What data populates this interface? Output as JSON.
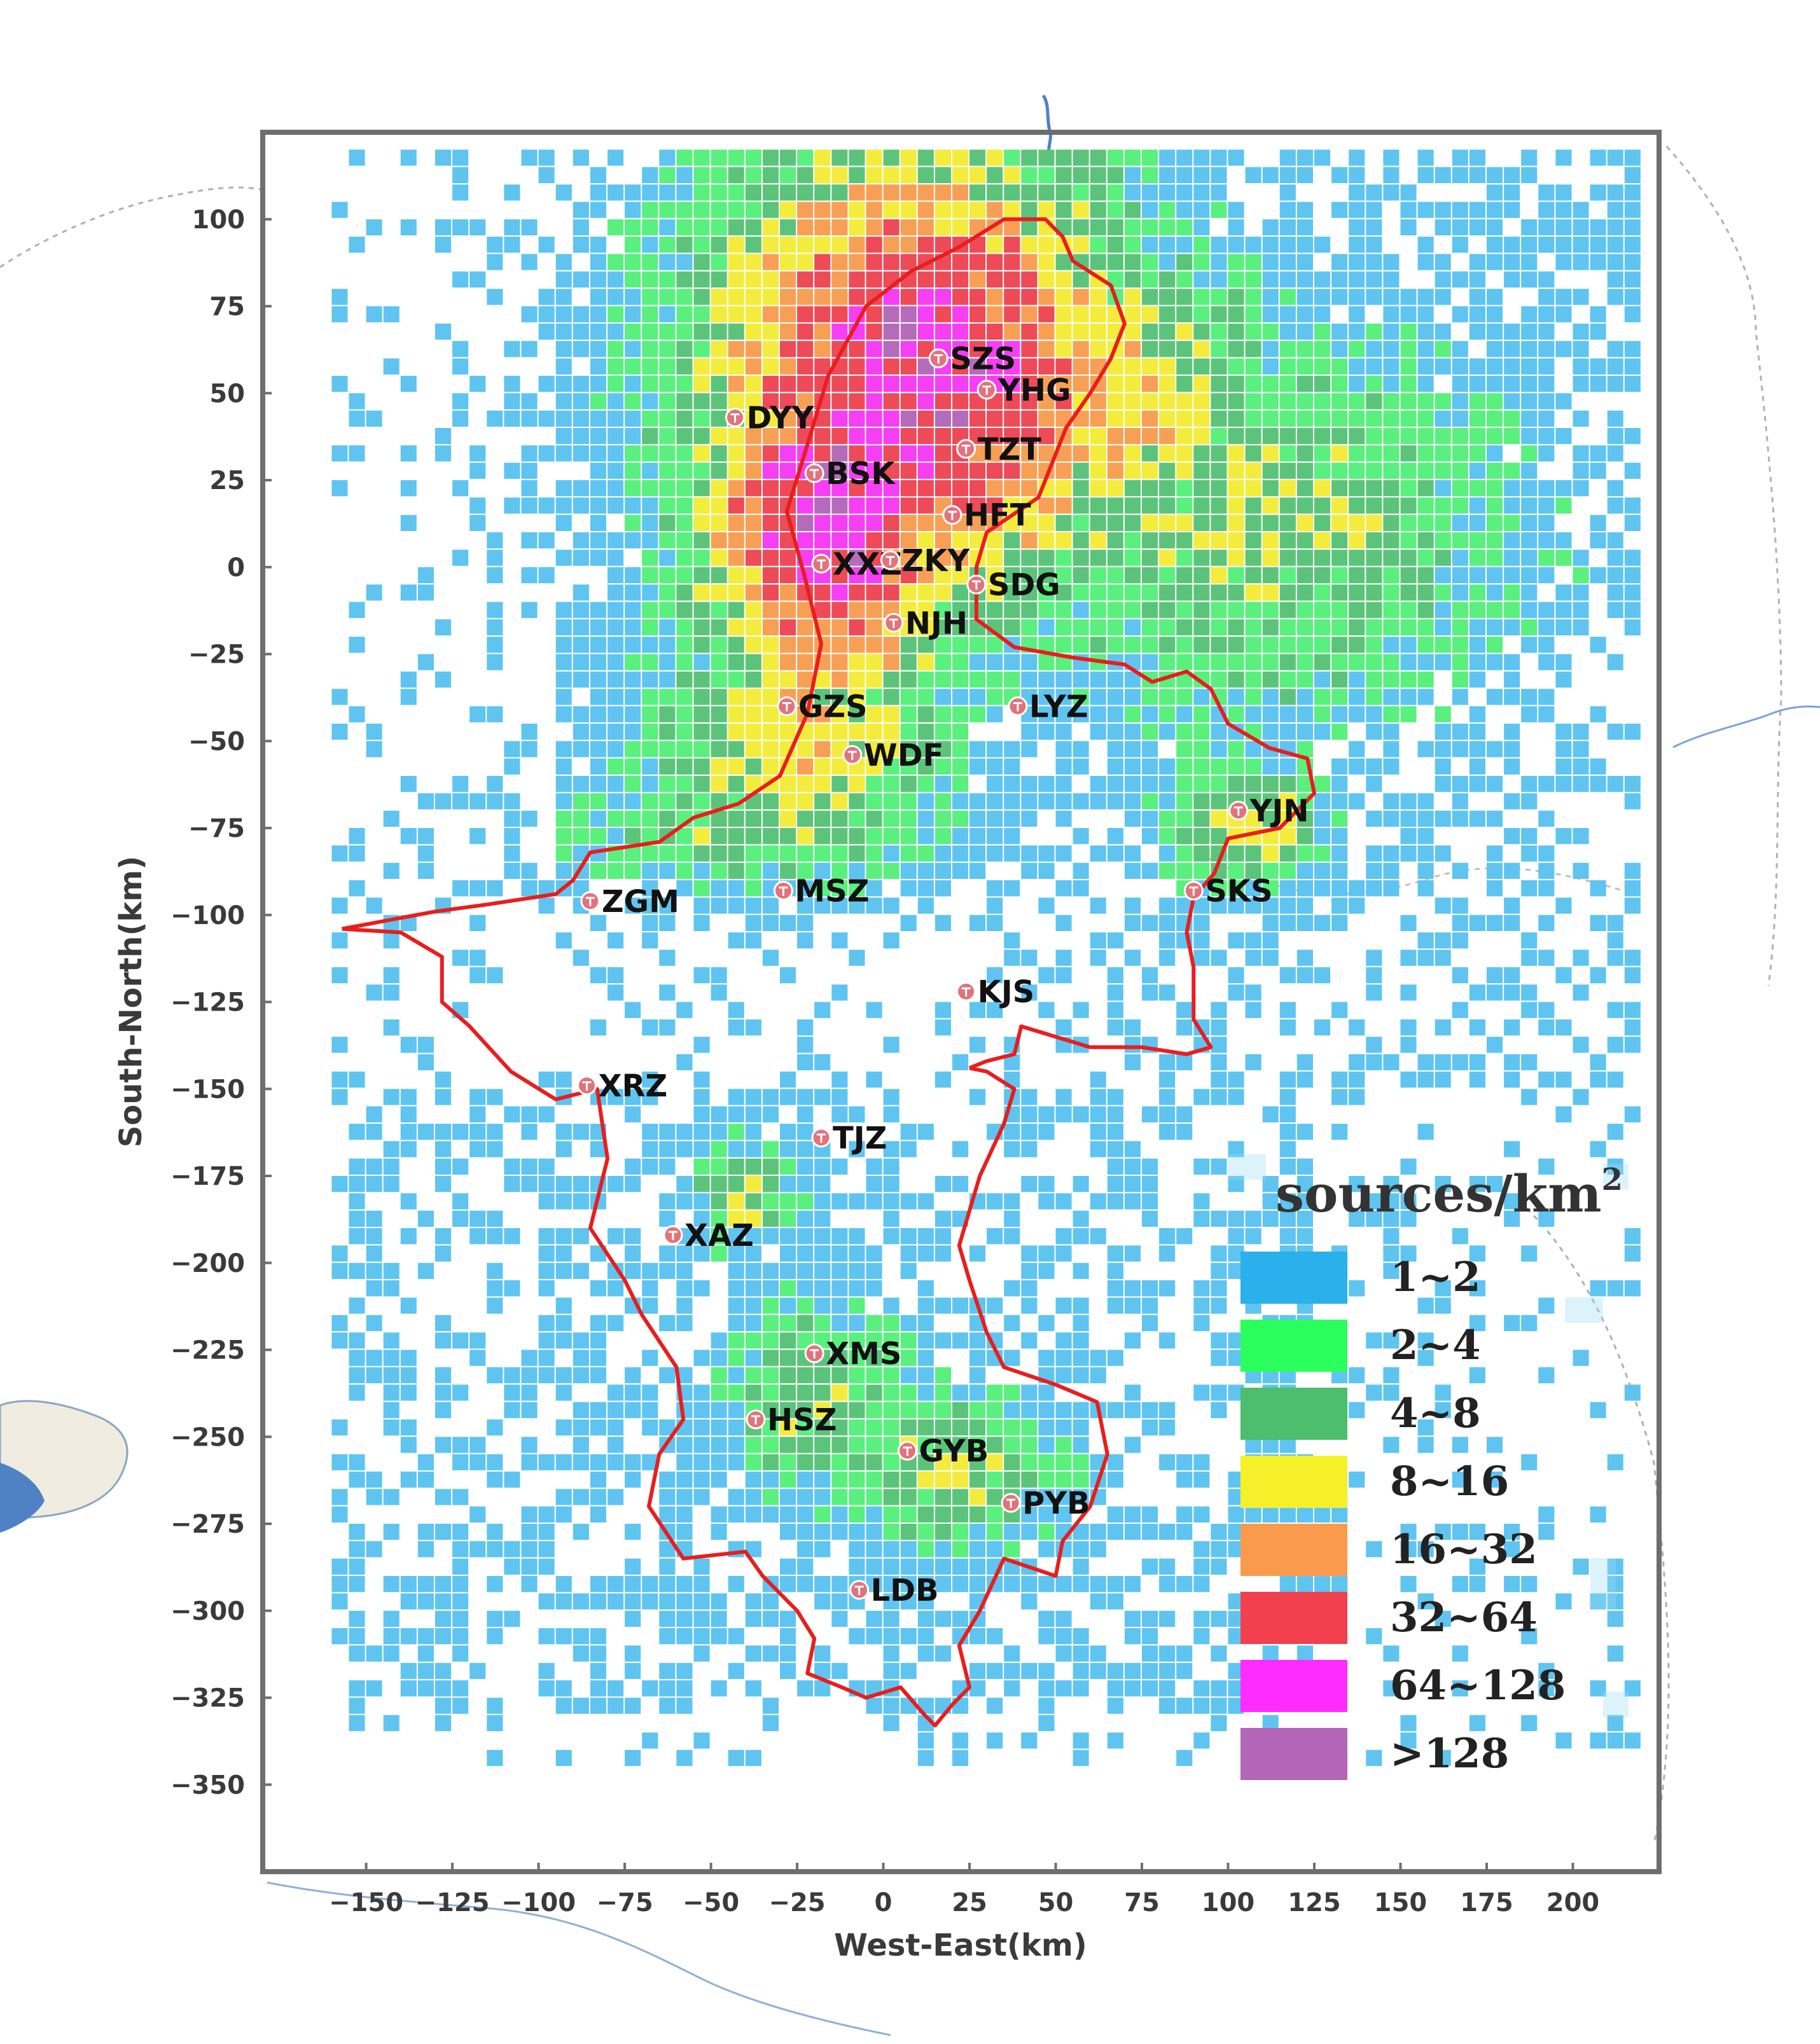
{
  "map": {
    "xlabel": "West-East(km)",
    "ylabel": "South-North(km)",
    "x_ticks": [
      -150,
      -125,
      -100,
      -75,
      -50,
      -25,
      0,
      25,
      50,
      75,
      100,
      125,
      150,
      175,
      200
    ],
    "y_ticks": [
      100,
      75,
      50,
      25,
      0,
      -25,
      -50,
      -75,
      -100,
      -125,
      -150,
      -175,
      -200,
      -225,
      -250,
      -275,
      -300,
      -325,
      -350
    ],
    "x_tick_labels": [
      "−150",
      "−125",
      "−100",
      "−75",
      "−50",
      "−25",
      "0",
      "25",
      "50",
      "75",
      "100",
      "125",
      "150",
      "175",
      "200"
    ],
    "y_tick_labels": [
      "100",
      "75",
      "50",
      "25",
      "0",
      "−25",
      "−50",
      "−75",
      "−100",
      "−125",
      "−150",
      "−175",
      "−200",
      "−225",
      "−250",
      "−275",
      "−300",
      "−325",
      "−350"
    ],
    "xlim": [
      -180,
      225
    ],
    "ylim": [
      -375,
      125
    ],
    "boundary_color": "#e81e1e"
  },
  "legend": {
    "title": "sources/km",
    "title_sup": "2",
    "bins": [
      {
        "label": "1~2",
        "color": "#2ab0ea"
      },
      {
        "label": "2~4",
        "color": "#2bff5e"
      },
      {
        "label": "4~8",
        "color": "#4cbe6e"
      },
      {
        "label": "8~16",
        "color": "#f6f02a"
      },
      {
        "label": "16~32",
        "color": "#fa9a4c"
      },
      {
        "label": "32~64",
        "color": "#f2404e"
      },
      {
        "label": "64~128",
        "color": "#ff2cff"
      },
      {
        "label": ">128",
        "color": "#b366b8"
      }
    ]
  },
  "stations": [
    {
      "name": "SZS",
      "x": 16,
      "y": 60
    },
    {
      "name": "YHG",
      "x": 30,
      "y": 51
    },
    {
      "name": "DYY",
      "x": -43,
      "y": 43
    },
    {
      "name": "TZT",
      "x": 24,
      "y": 34
    },
    {
      "name": "BSK",
      "x": -20,
      "y": 27
    },
    {
      "name": "HFT",
      "x": 20,
      "y": 15
    },
    {
      "name": "XXZ",
      "x": -18,
      "y": 1
    },
    {
      "name": "ZKY",
      "x": 2,
      "y": 2
    },
    {
      "name": "SDG",
      "x": 27,
      "y": -5
    },
    {
      "name": "NJH",
      "x": 3,
      "y": -16
    },
    {
      "name": "GZS",
      "x": -28,
      "y": -40
    },
    {
      "name": "LYZ",
      "x": 39,
      "y": -40
    },
    {
      "name": "WDF",
      "x": -9,
      "y": -54
    },
    {
      "name": "YJN",
      "x": 103,
      "y": -70
    },
    {
      "name": "SKS",
      "x": 90,
      "y": -93
    },
    {
      "name": "ZGM",
      "x": -85,
      "y": -96
    },
    {
      "name": "MSZ",
      "x": -29,
      "y": -93
    },
    {
      "name": "KJS",
      "x": 24,
      "y": -122
    },
    {
      "name": "XRZ",
      "x": -86,
      "y": -149
    },
    {
      "name": "TJZ",
      "x": -18,
      "y": -164
    },
    {
      "name": "XAZ",
      "x": -61,
      "y": -192
    },
    {
      "name": "XMS",
      "x": -20,
      "y": -226
    },
    {
      "name": "HSZ",
      "x": -37,
      "y": -245
    },
    {
      "name": "GYB",
      "x": 7,
      "y": -254
    },
    {
      "name": "PYB",
      "x": 37,
      "y": -269
    },
    {
      "name": "LDB",
      "x": -7,
      "y": -294
    }
  ],
  "density_grid": {
    "cell_km": 5,
    "clusters": [
      {
        "cx": 10,
        "cy": 55,
        "sx": 50,
        "sy": 55,
        "peak": 7.6
      },
      {
        "cx": -15,
        "cy": 15,
        "sx": 30,
        "sy": 45,
        "peak": 7.8
      },
      {
        "cx": 60,
        "cy": 45,
        "sx": 45,
        "sy": 40,
        "peak": 5.0
      },
      {
        "cx": 110,
        "cy": 10,
        "sx": 60,
        "sy": 45,
        "peak": 3.8
      },
      {
        "cx": 105,
        "cy": -75,
        "sx": 18,
        "sy": 15,
        "peak": 4.6
      },
      {
        "cx": -25,
        "cy": -50,
        "sx": 35,
        "sy": 25,
        "peak": 4.8
      },
      {
        "cx": -35,
        "cy": -75,
        "sx": 45,
        "sy": 15,
        "peak": 3.6
      },
      {
        "cx": -40,
        "cy": -180,
        "sx": 12,
        "sy": 12,
        "peak": 4.2
      },
      {
        "cx": -20,
        "cy": -240,
        "sx": 20,
        "sy": 25,
        "peak": 3.8
      },
      {
        "cx": 20,
        "cy": -260,
        "sx": 25,
        "sy": 20,
        "peak": 3.9
      }
    ],
    "background_zones": [
      {
        "x0": -160,
        "x1": 220,
        "y0": -345,
        "y1": 118,
        "p": 0.18
      },
      {
        "x0": -165,
        "x1": 125,
        "y0": -330,
        "y1": -150,
        "p": 0.52
      },
      {
        "x0": -110,
        "x1": 60,
        "y0": -310,
        "y1": -150,
        "p": 0.45
      },
      {
        "x0": 25,
        "x1": 220,
        "y0": 50,
        "y1": 118,
        "p": 0.6
      },
      {
        "x0": -95,
        "x1": 140,
        "y0": -90,
        "y1": 95,
        "p": 0.5
      },
      {
        "x0": 55,
        "x1": 220,
        "y0": -150,
        "y1": -60,
        "p": 0.42
      }
    ]
  },
  "boundary": {
    "north": [
      [
        -157,
        -104
      ],
      [
        -130,
        -99
      ],
      [
        -115,
        -97
      ],
      [
        -95,
        -94
      ],
      [
        -90,
        -90
      ],
      [
        -85,
        -82
      ],
      [
        -65,
        -79
      ],
      [
        -55,
        -72
      ],
      [
        -42,
        -68
      ],
      [
        -30,
        -60
      ],
      [
        -22,
        -42
      ],
      [
        -18,
        -22
      ],
      [
        -23,
        -2
      ],
      [
        -28,
        16
      ],
      [
        -23,
        32
      ],
      [
        -16,
        55
      ],
      [
        -5,
        75
      ],
      [
        8,
        85
      ],
      [
        22,
        92
      ],
      [
        35,
        100
      ],
      [
        47,
        100
      ],
      [
        52,
        95
      ],
      [
        55,
        88
      ],
      [
        66,
        81
      ],
      [
        70,
        70
      ],
      [
        66,
        60
      ],
      [
        60,
        50
      ],
      [
        53,
        40
      ],
      [
        45,
        20
      ],
      [
        30,
        10
      ],
      [
        27,
        0
      ],
      [
        27,
        -15
      ],
      [
        38,
        -23
      ],
      [
        55,
        -26
      ],
      [
        70,
        -28
      ],
      [
        78,
        -33
      ],
      [
        88,
        -30
      ],
      [
        95,
        -35
      ],
      [
        100,
        -45
      ],
      [
        112,
        -52
      ],
      [
        123,
        -55
      ],
      [
        125,
        -65
      ],
      [
        115,
        -75
      ],
      [
        100,
        -78
      ],
      [
        96,
        -88
      ],
      [
        90,
        -95
      ],
      [
        88,
        -105
      ],
      [
        90,
        -115
      ],
      [
        90,
        -130
      ],
      [
        95,
        -138
      ],
      [
        88,
        -140
      ],
      [
        75,
        -138
      ],
      [
        60,
        -138
      ],
      [
        50,
        -135
      ],
      [
        40,
        -132
      ],
      [
        38,
        -140
      ],
      [
        30,
        -142
      ],
      [
        25,
        -144
      ]
    ],
    "south": [
      [
        -157,
        -104
      ],
      [
        -140,
        -105
      ],
      [
        -128,
        -112
      ],
      [
        -128,
        -125
      ],
      [
        -120,
        -132
      ],
      [
        -108,
        -145
      ],
      [
        -95,
        -153
      ],
      [
        -83,
        -150
      ],
      [
        -80,
        -170
      ],
      [
        -85,
        -190
      ],
      [
        -75,
        -205
      ],
      [
        -70,
        -215
      ],
      [
        -60,
        -230
      ],
      [
        -58,
        -245
      ],
      [
        -65,
        -255
      ],
      [
        -68,
        -270
      ],
      [
        -58,
        -285
      ],
      [
        -40,
        -283
      ],
      [
        -35,
        -290
      ],
      [
        -25,
        -300
      ],
      [
        -20,
        -308
      ],
      [
        -22,
        -318
      ],
      [
        -12,
        -322
      ],
      [
        -5,
        -325
      ],
      [
        5,
        -322
      ],
      [
        12,
        -330
      ],
      [
        15,
        -333
      ],
      [
        20,
        -327
      ],
      [
        25,
        -322
      ],
      [
        22,
        -310
      ],
      [
        28,
        -300
      ],
      [
        35,
        -285
      ],
      [
        50,
        -290
      ],
      [
        52,
        -280
      ],
      [
        60,
        -270
      ],
      [
        65,
        -255
      ],
      [
        62,
        -240
      ],
      [
        50,
        -235
      ],
      [
        35,
        -230
      ],
      [
        30,
        -220
      ],
      [
        25,
        -205
      ],
      [
        22,
        -195
      ],
      [
        25,
        -185
      ],
      [
        28,
        -175
      ],
      [
        35,
        -160
      ],
      [
        38,
        -150
      ],
      [
        30,
        -145
      ],
      [
        25,
        -144
      ]
    ]
  },
  "basemap": {
    "shore_fill": "#f0ece0",
    "water_fill": "#4e82c4",
    "dash_color": "#b0b0b0"
  }
}
